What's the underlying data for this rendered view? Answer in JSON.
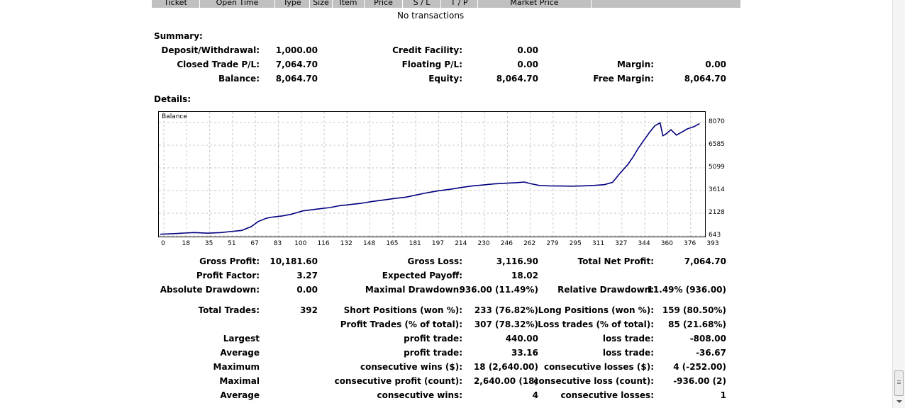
{
  "table_header": {
    "columns": [
      "Ticket",
      "Open Time",
      "Type",
      "Size",
      "Item",
      "Price",
      "S / L",
      "T / P",
      "Market Price"
    ],
    "empty_message": "No transactions"
  },
  "summary": {
    "heading": "Summary:",
    "rows": [
      [
        {
          "label": "Deposit/Withdrawal:",
          "value": "1,000.00"
        },
        {
          "label": "Credit Facility:",
          "value": "0.00"
        },
        {
          "label": "",
          "value": ""
        }
      ],
      [
        {
          "label": "Closed Trade P/L:",
          "value": "7,064.70"
        },
        {
          "label": "Floating P/L:",
          "value": "0.00"
        },
        {
          "label": "Margin:",
          "value": "0.00"
        }
      ],
      [
        {
          "label": "Balance:",
          "value": "8,064.70"
        },
        {
          "label": "Equity:",
          "value": "8,064.70"
        },
        {
          "label": "Free Margin:",
          "value": "8,064.70"
        }
      ]
    ]
  },
  "details": {
    "heading": "Details:"
  },
  "chart_data": {
    "type": "line",
    "title": "Balance",
    "yticks": [
      "8070",
      "6585",
      "5099",
      "3614",
      "2128",
      "643"
    ],
    "xticks": [
      "0",
      "18",
      "35",
      "51",
      "67",
      "83",
      "100",
      "116",
      "132",
      "148",
      "165",
      "181",
      "197",
      "214",
      "230",
      "246",
      "262",
      "279",
      "295",
      "311",
      "327",
      "344",
      "360",
      "376",
      "393"
    ],
    "ylim": [
      643,
      8070
    ],
    "xlim": [
      0,
      400
    ],
    "grid": true,
    "series": [
      {
        "x": [
          0,
          10,
          18,
          25,
          35,
          45,
          51,
          60,
          67,
          72,
          78,
          83,
          90,
          96,
          100,
          105,
          116,
          125,
          132,
          140,
          148,
          156,
          165,
          173,
          181,
          190,
          197,
          205,
          214,
          222,
          230,
          238,
          246,
          254,
          262,
          268,
          272,
          279,
          287,
          295,
          303,
          311,
          319,
          327,
          333,
          338,
          344,
          348,
          352,
          356,
          360,
          364,
          368,
          370,
          372,
          376,
          380,
          384,
          388,
          393,
          397
        ],
        "y": [
          750,
          790,
          830,
          860,
          820,
          860,
          920,
          1000,
          1250,
          1580,
          1800,
          1880,
          1950,
          2050,
          2150,
          2280,
          2400,
          2500,
          2620,
          2700,
          2780,
          2900,
          3000,
          3100,
          3180,
          3350,
          3480,
          3600,
          3700,
          3820,
          3920,
          3980,
          4050,
          4090,
          4130,
          4170,
          4080,
          3950,
          3920,
          3910,
          3900,
          3920,
          3950,
          4000,
          4150,
          4700,
          5300,
          5800,
          6400,
          6900,
          7400,
          7850,
          8050,
          7200,
          7300,
          7600,
          7250,
          7450,
          7650,
          7800,
          8000
        ]
      }
    ]
  },
  "stats": {
    "block1": [
      [
        {
          "label": "Gross Profit:",
          "value": "10,181.60"
        },
        {
          "label": "Gross Loss:",
          "value": "3,116.90"
        },
        {
          "label": "Total Net Profit:",
          "value": "7,064.70"
        }
      ],
      [
        {
          "label": "Profit Factor:",
          "value": "3.27"
        },
        {
          "label": "Expected Payoff:",
          "value": "18.02"
        },
        {
          "label": "",
          "value": ""
        }
      ],
      [
        {
          "label": "Absolute Drawdown:",
          "value": "0.00"
        },
        {
          "label": "Maximal Drawdown:",
          "value": "936.00 (11.49%)"
        },
        {
          "label": "Relative Drawdown:",
          "value": "11.49% (936.00)"
        }
      ]
    ],
    "block2": [
      [
        {
          "label": "Total Trades:",
          "value": "392"
        },
        {
          "label": "Short Positions (won %):",
          "value": "233 (76.82%)"
        },
        {
          "label": "Long Positions (won %):",
          "value": "159 (80.50%)"
        }
      ],
      [
        {
          "label": "",
          "value": ""
        },
        {
          "label": "Profit Trades (% of total):",
          "value": "307 (78.32%)"
        },
        {
          "label": "Loss trades (% of total):",
          "value": "85 (21.68%)"
        }
      ],
      [
        {
          "label": "Largest",
          "value": ""
        },
        {
          "label": "profit trade:",
          "value": "440.00"
        },
        {
          "label": "loss trade:",
          "value": "-808.00"
        }
      ],
      [
        {
          "label": "Average",
          "value": ""
        },
        {
          "label": "profit trade:",
          "value": "33.16"
        },
        {
          "label": "loss trade:",
          "value": "-36.67"
        }
      ],
      [
        {
          "label": "Maximum",
          "value": ""
        },
        {
          "label": "consecutive wins ($):",
          "value": "18 (2,640.00)"
        },
        {
          "label": "consecutive losses ($):",
          "value": "4 (-252.00)"
        }
      ],
      [
        {
          "label": "Maximal",
          "value": ""
        },
        {
          "label": "consecutive profit (count):",
          "value": "2,640.00 (18)"
        },
        {
          "label": "consecutive loss (count):",
          "value": "-936.00 (2)"
        }
      ],
      [
        {
          "label": "Average",
          "value": ""
        },
        {
          "label": "consecutive wins:",
          "value": "4"
        },
        {
          "label": "consecutive losses:",
          "value": "1"
        }
      ]
    ]
  },
  "colors": {
    "line": "#00007f",
    "grid": "#c8c8c8",
    "header_bg": "#c0c0c0"
  }
}
